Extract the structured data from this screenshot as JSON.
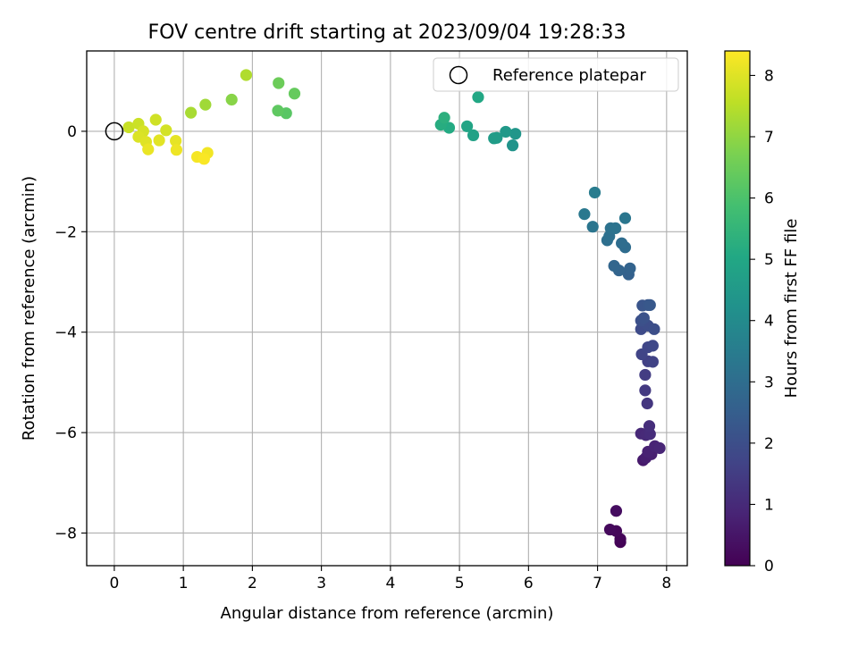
{
  "chart_data": {
    "type": "scatter",
    "title": "FOV centre drift starting at 2023/09/04 19:28:33",
    "xlabel": "Angular distance from reference (arcmin)",
    "ylabel": "Rotation from reference (arcmin)",
    "xlim": [
      -0.4,
      8.3
    ],
    "ylim": [
      -8.65,
      1.6
    ],
    "xticks": [
      "0",
      "1",
      "2",
      "3",
      "4",
      "5",
      "6",
      "7",
      "8"
    ],
    "yticks": [
      "0",
      "−2",
      "−4",
      "−6",
      "−8"
    ],
    "grid": true,
    "legend": {
      "position": "top-right",
      "entries": [
        "Reference platepar"
      ]
    },
    "reference_point": {
      "x": 0,
      "y": 0
    },
    "colorbar": {
      "label": "Hours from first FF file",
      "range": [
        0,
        8.4
      ],
      "ticks": [
        "0",
        "1",
        "2",
        "3",
        "4",
        "5",
        "6",
        "7",
        "8"
      ],
      "colormap": "viridis"
    },
    "points": [
      {
        "x": 7.33,
        "y": -8.18,
        "t": 0.05
      },
      {
        "x": 7.33,
        "y": -8.12,
        "t": 0.1
      },
      {
        "x": 7.27,
        "y": -7.96,
        "t": 0.15
      },
      {
        "x": 7.18,
        "y": -7.93,
        "t": 0.2
      },
      {
        "x": 7.27,
        "y": -7.56,
        "t": 0.3
      },
      {
        "x": 7.66,
        "y": -6.55,
        "t": 0.6
      },
      {
        "x": 7.7,
        "y": -6.5,
        "t": 0.7
      },
      {
        "x": 7.78,
        "y": -6.43,
        "t": 0.75
      },
      {
        "x": 7.73,
        "y": -6.38,
        "t": 0.8
      },
      {
        "x": 7.83,
        "y": -6.27,
        "t": 0.85
      },
      {
        "x": 7.9,
        "y": -6.31,
        "t": 0.9
      },
      {
        "x": 7.63,
        "y": -6.02,
        "t": 0.95
      },
      {
        "x": 7.7,
        "y": -6.05,
        "t": 1.0
      },
      {
        "x": 7.76,
        "y": -6.03,
        "t": 1.05
      },
      {
        "x": 7.75,
        "y": -5.87,
        "t": 1.1
      },
      {
        "x": 7.72,
        "y": -5.42,
        "t": 1.3
      },
      {
        "x": 7.69,
        "y": -5.16,
        "t": 1.4
      },
      {
        "x": 7.69,
        "y": -4.85,
        "t": 1.5
      },
      {
        "x": 7.73,
        "y": -4.58,
        "t": 1.6
      },
      {
        "x": 7.8,
        "y": -4.59,
        "t": 1.65
      },
      {
        "x": 7.64,
        "y": -4.44,
        "t": 1.7
      },
      {
        "x": 7.73,
        "y": -4.3,
        "t": 1.75
      },
      {
        "x": 7.8,
        "y": -4.27,
        "t": 1.8
      },
      {
        "x": 7.63,
        "y": -3.94,
        "t": 1.9
      },
      {
        "x": 7.73,
        "y": -3.87,
        "t": 1.95
      },
      {
        "x": 7.82,
        "y": -3.94,
        "t": 2.0
      },
      {
        "x": 7.63,
        "y": -3.77,
        "t": 2.05
      },
      {
        "x": 7.67,
        "y": -3.72,
        "t": 2.1
      },
      {
        "x": 7.65,
        "y": -3.47,
        "t": 2.2
      },
      {
        "x": 7.73,
        "y": -3.46,
        "t": 2.25
      },
      {
        "x": 7.76,
        "y": -3.46,
        "t": 2.3
      },
      {
        "x": 7.45,
        "y": -2.85,
        "t": 2.6
      },
      {
        "x": 7.47,
        "y": -2.73,
        "t": 2.65
      },
      {
        "x": 7.31,
        "y": -2.77,
        "t": 2.7
      },
      {
        "x": 7.24,
        "y": -2.68,
        "t": 2.75
      },
      {
        "x": 7.4,
        "y": -2.31,
        "t": 2.95
      },
      {
        "x": 7.35,
        "y": -2.23,
        "t": 3.0
      },
      {
        "x": 7.14,
        "y": -2.17,
        "t": 3.05
      },
      {
        "x": 7.17,
        "y": -2.09,
        "t": 3.1
      },
      {
        "x": 7.19,
        "y": -1.93,
        "t": 3.15
      },
      {
        "x": 7.26,
        "y": -1.93,
        "t": 3.2
      },
      {
        "x": 6.93,
        "y": -1.9,
        "t": 3.25
      },
      {
        "x": 7.4,
        "y": -1.73,
        "t": 3.3
      },
      {
        "x": 6.81,
        "y": -1.65,
        "t": 3.35
      },
      {
        "x": 6.96,
        "y": -1.22,
        "t": 3.5
      },
      {
        "x": 5.77,
        "y": -0.28,
        "t": 4.3
      },
      {
        "x": 5.81,
        "y": -0.05,
        "t": 4.4
      },
      {
        "x": 5.67,
        "y": -0.01,
        "t": 4.5
      },
      {
        "x": 5.54,
        "y": -0.13,
        "t": 4.55
      },
      {
        "x": 5.5,
        "y": -0.14,
        "t": 4.6
      },
      {
        "x": 5.2,
        "y": -0.08,
        "t": 4.8
      },
      {
        "x": 5.11,
        "y": 0.1,
        "t": 4.9
      },
      {
        "x": 5.27,
        "y": 0.68,
        "t": 5.0
      },
      {
        "x": 4.85,
        "y": 0.07,
        "t": 5.1
      },
      {
        "x": 4.73,
        "y": 0.13,
        "t": 5.2
      },
      {
        "x": 4.78,
        "y": 0.27,
        "t": 5.3
      },
      {
        "x": 2.49,
        "y": 0.36,
        "t": 6.2
      },
      {
        "x": 2.37,
        "y": 0.41,
        "t": 6.3
      },
      {
        "x": 2.61,
        "y": 0.75,
        "t": 6.4
      },
      {
        "x": 2.38,
        "y": 0.96,
        "t": 6.5
      },
      {
        "x": 1.7,
        "y": 0.63,
        "t": 6.9
      },
      {
        "x": 1.32,
        "y": 0.53,
        "t": 7.2
      },
      {
        "x": 1.11,
        "y": 0.37,
        "t": 7.3
      },
      {
        "x": 1.91,
        "y": 1.12,
        "t": 7.4
      },
      {
        "x": 0.21,
        "y": 0.08,
        "t": 7.7
      },
      {
        "x": 0.35,
        "y": 0.15,
        "t": 7.75
      },
      {
        "x": 0.6,
        "y": 0.23,
        "t": 7.8
      },
      {
        "x": 0.75,
        "y": 0.02,
        "t": 7.85
      },
      {
        "x": 0.42,
        "y": 0.0,
        "t": 7.9
      },
      {
        "x": 0.35,
        "y": -0.11,
        "t": 7.95
      },
      {
        "x": 0.46,
        "y": -0.21,
        "t": 8.0
      },
      {
        "x": 0.65,
        "y": -0.18,
        "t": 8.05
      },
      {
        "x": 0.89,
        "y": -0.19,
        "t": 8.1
      },
      {
        "x": 0.49,
        "y": -0.36,
        "t": 8.15
      },
      {
        "x": 0.9,
        "y": -0.37,
        "t": 8.2
      },
      {
        "x": 1.35,
        "y": -0.43,
        "t": 8.25
      },
      {
        "x": 1.2,
        "y": -0.51,
        "t": 8.3
      },
      {
        "x": 1.3,
        "y": -0.55,
        "t": 8.35
      }
    ]
  }
}
